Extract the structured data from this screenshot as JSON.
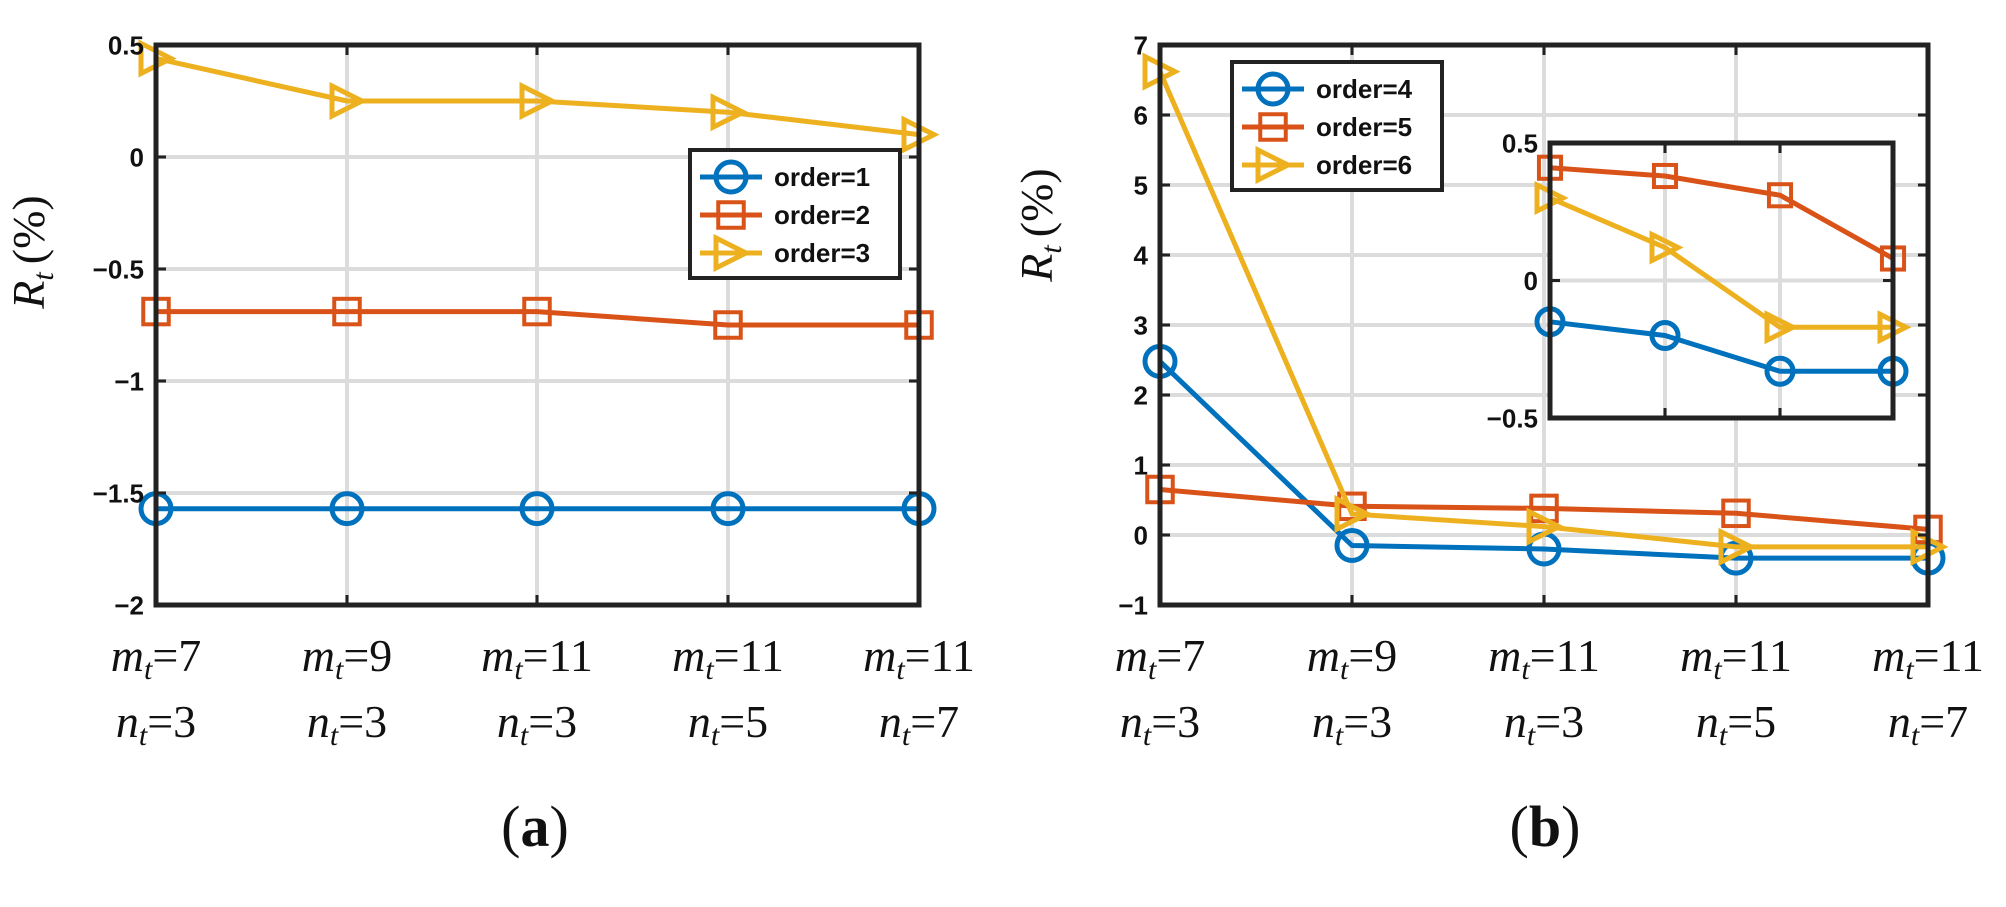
{
  "chart_data": [
    {
      "id": "a",
      "type": "line",
      "panel_label": "a",
      "ylabel": "R",
      "ylabel_sub": "t",
      "ylabel_unit": "(%)",
      "ylim": [
        -2,
        0.5
      ],
      "yticks": [
        -2,
        -1.5,
        -1,
        -0.5,
        0,
        0.5
      ],
      "ytick_labels": [
        "−2",
        "−1.5",
        "−1",
        "−0.5",
        "0",
        "0.5"
      ],
      "grid": true,
      "legend_position": "right",
      "categories": [
        {
          "m": "7",
          "n": "3"
        },
        {
          "m": "9",
          "n": "3"
        },
        {
          "m": "11",
          "n": "3"
        },
        {
          "m": "11",
          "n": "5"
        },
        {
          "m": "11",
          "n": "7"
        }
      ],
      "series": [
        {
          "name": "order=1",
          "marker": "circle",
          "color": "#0072BD",
          "values": [
            -1.57,
            -1.57,
            -1.57,
            -1.57,
            -1.57
          ]
        },
        {
          "name": "order=2",
          "marker": "square",
          "color": "#D95319",
          "values": [
            -0.69,
            -0.69,
            -0.69,
            -0.75,
            -0.75
          ]
        },
        {
          "name": "order=3",
          "marker": "triangle-right",
          "color": "#EDB120",
          "values": [
            0.44,
            0.25,
            0.25,
            0.2,
            0.1
          ]
        }
      ]
    },
    {
      "id": "b",
      "type": "line",
      "panel_label": "b",
      "ylabel": "R",
      "ylabel_sub": "t",
      "ylabel_unit": "(%)",
      "ylim": [
        -1,
        7
      ],
      "yticks": [
        -1,
        0,
        1,
        2,
        3,
        4,
        5,
        6,
        7
      ],
      "ytick_labels": [
        "−1",
        "0",
        "1",
        "2",
        "3",
        "4",
        "5",
        "6",
        "7"
      ],
      "grid": true,
      "legend_position": "top-left",
      "categories": [
        {
          "m": "7",
          "n": "3"
        },
        {
          "m": "9",
          "n": "3"
        },
        {
          "m": "11",
          "n": "3"
        },
        {
          "m": "11",
          "n": "5"
        },
        {
          "m": "11",
          "n": "7"
        }
      ],
      "series": [
        {
          "name": "order=4",
          "marker": "circle",
          "color": "#0072BD",
          "values": [
            2.48,
            -0.15,
            -0.2,
            -0.33,
            -0.33
          ]
        },
        {
          "name": "order=5",
          "marker": "square",
          "color": "#D95319",
          "values": [
            0.65,
            0.41,
            0.38,
            0.31,
            0.08
          ]
        },
        {
          "name": "order=6",
          "marker": "triangle-right",
          "color": "#EDB120",
          "values": [
            6.62,
            0.3,
            0.12,
            -0.17,
            -0.17
          ]
        }
      ],
      "inset": {
        "ylim": [
          -0.5,
          0.5
        ],
        "yticks": [
          -0.5,
          0,
          0.5
        ],
        "ytick_labels": [
          "−0.5",
          "0",
          "0.5"
        ],
        "x_indices": [
          1,
          2,
          3,
          4
        ]
      }
    }
  ]
}
